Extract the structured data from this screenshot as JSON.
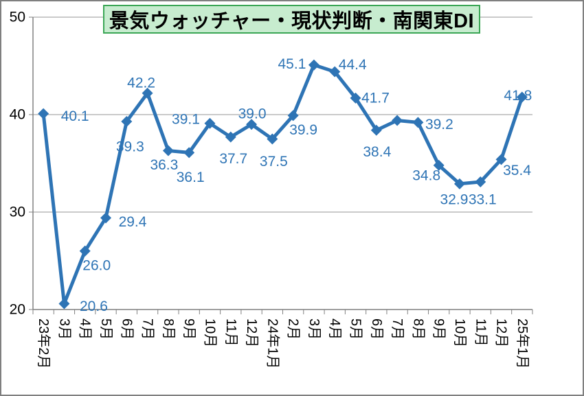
{
  "frame": {
    "background": "#FFFFFF",
    "border_color": "#7F7F7F"
  },
  "title": {
    "text": "景気ウォッチャー・現状判断・南関東DI",
    "fill": "#C7ECCF",
    "border_color": "#3AA655",
    "text_color": "#000000"
  },
  "chart_data": {
    "type": "line",
    "title": "景気ウォッチャー・現状判断・南関東DI",
    "categories": [
      "23年2月",
      "3月",
      "4月",
      "5月",
      "6月",
      "7月",
      "8月",
      "9月",
      "10月",
      "11月",
      "12月",
      "24年1月",
      "2月",
      "3月",
      "4月",
      "5月",
      "6月",
      "7月",
      "8月",
      "9月",
      "10月",
      "11月",
      "12月",
      "25年1月"
    ],
    "series": [
      {
        "name": "南関東DI",
        "color": "#2E74B5",
        "values": [
          40.1,
          20.6,
          26.0,
          29.4,
          39.3,
          42.2,
          36.3,
          36.1,
          39.1,
          37.7,
          39.0,
          37.5,
          39.9,
          45.1,
          44.4,
          41.7,
          38.4,
          39.4,
          39.2,
          34.8,
          32.9,
          33.1,
          35.4,
          41.8
        ]
      }
    ],
    "data_labels": [
      "40.1",
      "20.6",
      "26.0",
      "29.4",
      "39.3",
      "42.2",
      "36.3",
      "36.1",
      "39.1",
      "37.7",
      "39.0",
      "37.5",
      "39.9",
      "45.1",
      "44.4",
      "41.7",
      "38.4",
      "",
      "39.2",
      "34.8",
      "32.9",
      "33.1",
      "35.4",
      "41.8"
    ],
    "label_offsets": [
      [
        46,
        4
      ],
      [
        43,
        4
      ],
      [
        17,
        21
      ],
      [
        39,
        6
      ],
      [
        5,
        37
      ],
      [
        -9,
        -15
      ],
      [
        -6,
        21
      ],
      [
        2,
        36
      ],
      [
        -35,
        -6
      ],
      [
        4,
        32
      ],
      [
        1,
        -15
      ],
      [
        2,
        33
      ],
      [
        15,
        21
      ],
      [
        -32,
        -1
      ],
      [
        26,
        -10
      ],
      [
        29,
        0
      ],
      [
        1,
        32
      ],
      null,
      [
        31,
        3
      ],
      [
        -18,
        15
      ],
      [
        -8,
        23
      ],
      [
        3,
        26
      ],
      [
        23,
        16
      ],
      [
        -6,
        -2
      ]
    ],
    "xlabel": "",
    "ylabel": "",
    "ylim": [
      20,
      50
    ],
    "yticks": [
      20,
      30,
      40,
      50
    ],
    "y_tick_labels": [
      "20",
      "30",
      "40",
      "50"
    ],
    "grid": true,
    "legend": "none",
    "marker": "diamond",
    "gridline_color": "#969696",
    "axis_color": "#808080",
    "tick_label_color": "#000000",
    "data_label_color": "#2E74B5"
  }
}
